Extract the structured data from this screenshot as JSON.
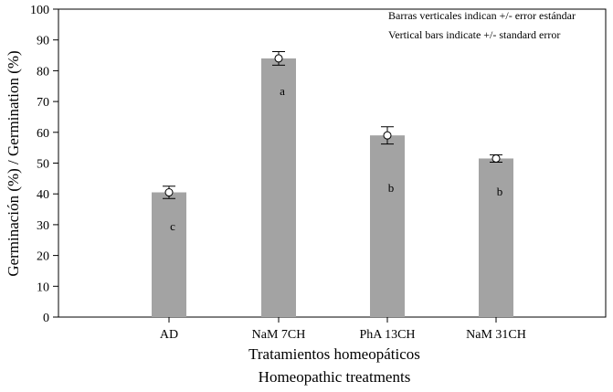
{
  "chart_data": {
    "type": "bar",
    "categories": [
      "AD",
      "NaM 7CH",
      "PhA 13CH",
      "NaM 31CH"
    ],
    "values": [
      40.5,
      84,
      59,
      51.5
    ],
    "errors": [
      2,
      2.2,
      2.8,
      1.2
    ],
    "group_letters": [
      "c",
      "a",
      "b",
      "b"
    ],
    "ylabel": "Germinación (%) / Germination (%)",
    "xlabel_line1": "Tratamientos homeopáticos",
    "xlabel_line2": "Homeopathic treatments",
    "ylim": [
      0,
      100
    ],
    "yticks": [
      0,
      10,
      20,
      30,
      40,
      50,
      60,
      70,
      80,
      90,
      100
    ],
    "legend": {
      "position": "top-right",
      "line1": "Barras verticales indican +/- error estándar",
      "line2": "Vertical bars indicate +/- standard error"
    },
    "colors": {
      "bar": "#a3a3a3",
      "axis": "#000000",
      "marker_fill": "#ffffff"
    }
  }
}
